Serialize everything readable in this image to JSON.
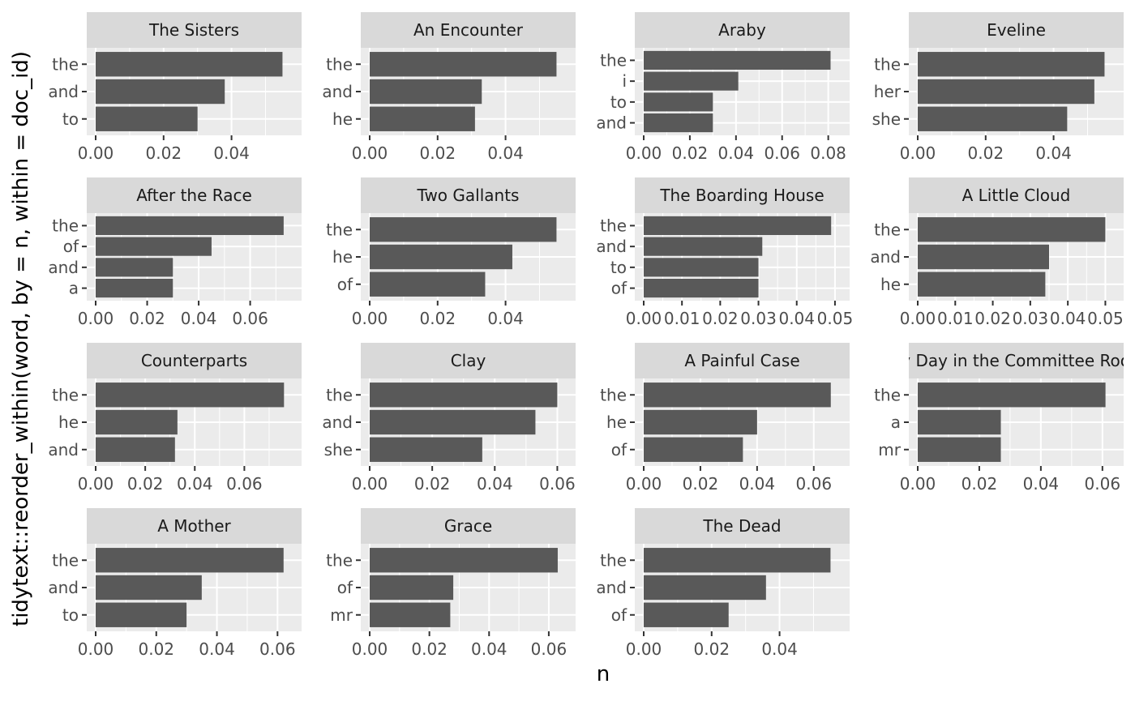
{
  "chart_data": {
    "type": "bar",
    "orientation": "horizontal",
    "facet_layout": "4 columns x 4 rows, free scales",
    "xlabel": "n",
    "ylabel": "tidytext::reorder_within(word, by = n, within = doc_id)",
    "colors": {
      "bar": "#595959",
      "panel_bg": "#EBEBEB",
      "strip_bg": "#D9D9D9",
      "grid": "#FFFFFF",
      "tick_text": "#4D4D4D",
      "title_text": "#1A1A1A"
    },
    "panels": [
      {
        "title": "The Sisters",
        "categories": [
          "the",
          "and",
          "to"
        ],
        "values": [
          0.055,
          0.038,
          0.03
        ],
        "xlim": [
          0,
          0.058
        ],
        "xticks": [
          0,
          0.02,
          0.04
        ],
        "xtick_labels": [
          "0.00",
          "0.02",
          "0.04"
        ]
      },
      {
        "title": "An Encounter",
        "categories": [
          "the",
          "and",
          "he"
        ],
        "values": [
          0.055,
          0.033,
          0.031
        ],
        "xlim": [
          0,
          0.058
        ],
        "xticks": [
          0,
          0.02,
          0.04
        ],
        "xtick_labels": [
          "0.00",
          "0.02",
          "0.04"
        ]
      },
      {
        "title": "Araby",
        "categories": [
          "the",
          "i",
          "to",
          "and"
        ],
        "values": [
          0.081,
          0.041,
          0.03,
          0.03
        ],
        "xlim": [
          0,
          0.0854
        ],
        "xticks": [
          0,
          0.02,
          0.04,
          0.06,
          0.08
        ],
        "xtick_labels": [
          "0.00",
          "0.02",
          "0.04",
          "0.06",
          "0.08"
        ]
      },
      {
        "title": "Eveline",
        "categories": [
          "the",
          "her",
          "she"
        ],
        "values": [
          0.055,
          0.052,
          0.044
        ],
        "xlim": [
          0,
          0.058
        ],
        "xticks": [
          0,
          0.02,
          0.04
        ],
        "xtick_labels": [
          "0.00",
          "0.02",
          "0.04"
        ]
      },
      {
        "title": "After the Race",
        "categories": [
          "the",
          "of",
          "and",
          "a"
        ],
        "values": [
          0.073,
          0.045,
          0.03,
          0.03
        ],
        "xlim": [
          0,
          0.0765
        ],
        "xticks": [
          0,
          0.02,
          0.04,
          0.06
        ],
        "xtick_labels": [
          "0.00",
          "0.02",
          "0.04",
          "0.06"
        ]
      },
      {
        "title": "Two Gallants",
        "categories": [
          "the",
          "he",
          "of"
        ],
        "values": [
          0.055,
          0.042,
          0.034
        ],
        "xlim": [
          0,
          0.058
        ],
        "xticks": [
          0,
          0.02,
          0.04
        ],
        "xtick_labels": [
          "0.00",
          "0.02",
          "0.04"
        ]
      },
      {
        "title": "The Boarding House",
        "categories": [
          "the",
          "and",
          "to",
          "of"
        ],
        "values": [
          0.049,
          0.031,
          0.03,
          0.03
        ],
        "xlim": [
          0,
          0.0515
        ],
        "xticks": [
          0,
          0.01,
          0.02,
          0.03,
          0.04,
          0.05
        ],
        "xtick_labels": [
          "0.00",
          "0.01",
          "0.02",
          "0.03",
          "0.04",
          "0.05"
        ]
      },
      {
        "title": "A Little Cloud",
        "categories": [
          "the",
          "and",
          "he"
        ],
        "values": [
          0.05,
          0.035,
          0.034
        ],
        "xlim": [
          0,
          0.0525
        ],
        "xticks": [
          0,
          0.01,
          0.02,
          0.03,
          0.04,
          0.05
        ],
        "xtick_labels": [
          "0.00",
          "0.01",
          "0.02",
          "0.03",
          "0.04",
          "0.05"
        ]
      },
      {
        "title": "Counterparts",
        "categories": [
          "the",
          "he",
          "and"
        ],
        "values": [
          0.076,
          0.033,
          0.032
        ],
        "xlim": [
          0,
          0.0795
        ],
        "xticks": [
          0,
          0.02,
          0.04,
          0.06
        ],
        "xtick_labels": [
          "0.00",
          "0.02",
          "0.04",
          "0.06"
        ]
      },
      {
        "title": "Clay",
        "categories": [
          "the",
          "and",
          "she"
        ],
        "values": [
          0.06,
          0.053,
          0.036
        ],
        "xlim": [
          0,
          0.063
        ],
        "xticks": [
          0,
          0.02,
          0.04,
          0.06
        ],
        "xtick_labels": [
          "0.00",
          "0.02",
          "0.04",
          "0.06"
        ]
      },
      {
        "title": "A Painful Case",
        "categories": [
          "the",
          "he",
          "of"
        ],
        "values": [
          0.066,
          0.04,
          0.035
        ],
        "xlim": [
          0,
          0.0695
        ],
        "xticks": [
          0,
          0.02,
          0.04,
          0.06
        ],
        "xtick_labels": [
          "0.00",
          "0.02",
          "0.04",
          "0.06"
        ]
      },
      {
        "title": "Ivy Day in the Committee Room",
        "categories": [
          "the",
          "a",
          "mr"
        ],
        "values": [
          0.061,
          0.027,
          0.027
        ],
        "xlim": [
          0,
          0.064
        ],
        "xticks": [
          0,
          0.02,
          0.04,
          0.06
        ],
        "xtick_labels": [
          "0.00",
          "0.02",
          "0.04",
          "0.06"
        ]
      },
      {
        "title": "A Mother",
        "categories": [
          "the",
          "and",
          "to"
        ],
        "values": [
          0.062,
          0.035,
          0.03
        ],
        "xlim": [
          0,
          0.065
        ],
        "xticks": [
          0,
          0.02,
          0.04,
          0.06
        ],
        "xtick_labels": [
          "0.00",
          "0.02",
          "0.04",
          "0.06"
        ]
      },
      {
        "title": "Grace",
        "categories": [
          "the",
          "of",
          "mr"
        ],
        "values": [
          0.063,
          0.028,
          0.027
        ],
        "xlim": [
          0,
          0.066
        ],
        "xticks": [
          0,
          0.02,
          0.04,
          0.06
        ],
        "xtick_labels": [
          "0.00",
          "0.02",
          "0.04",
          "0.06"
        ]
      },
      {
        "title": "The Dead",
        "categories": [
          "the",
          "and",
          "of"
        ],
        "values": [
          0.055,
          0.036,
          0.025
        ],
        "xlim": [
          0,
          0.058
        ],
        "xticks": [
          0,
          0.02,
          0.04
        ],
        "xtick_labels": [
          "0.00",
          "0.02",
          "0.04"
        ]
      }
    ]
  }
}
